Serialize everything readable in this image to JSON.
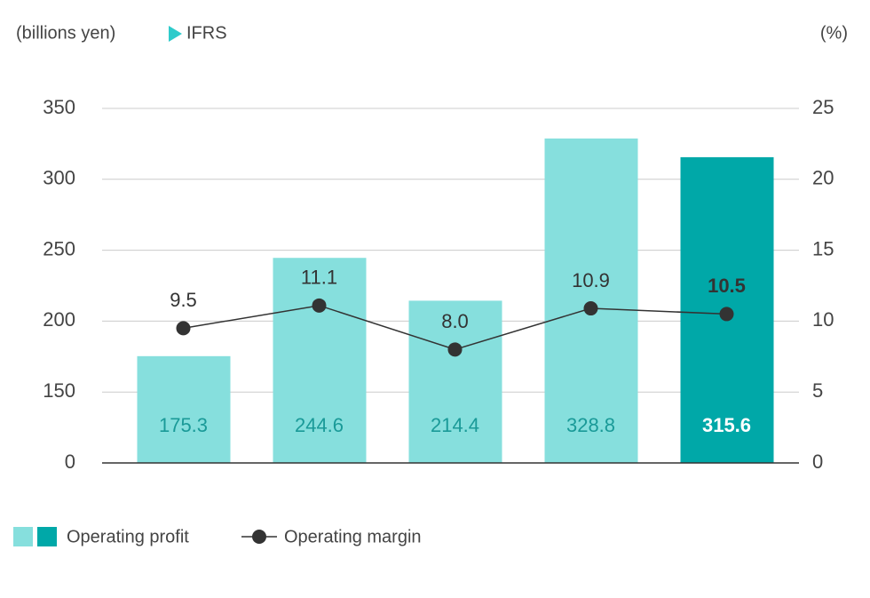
{
  "chart_data": {
    "type": "bar-line",
    "y_unit": "(billions yen)",
    "y2_unit": "(%)",
    "note": "IFRS",
    "categories": [
      null,
      null,
      null,
      null,
      null
    ],
    "series": [
      {
        "name": "Operating profit",
        "type": "bar",
        "axis": "y",
        "colors": [
          "#86dfdd",
          "#86dfdd",
          "#86dfdd",
          "#86dfdd",
          "#00a8a8"
        ],
        "values": [
          175.3,
          244.6,
          214.4,
          328.8,
          315.6
        ]
      },
      {
        "name": "Operating margin",
        "type": "line",
        "axis": "y2",
        "color": "#333333",
        "values": [
          9.5,
          11.1,
          8.0,
          10.9,
          10.5
        ],
        "value_labels": [
          "9.5",
          "11.1",
          "8.0",
          "10.9",
          "10.5"
        ]
      }
    ],
    "ylim": [
      0,
      350
    ],
    "yticks": [
      0,
      150,
      200,
      250,
      300,
      350
    ],
    "y2lim": [
      0,
      25
    ],
    "y2ticks": [
      0,
      5,
      10,
      15,
      20,
      25
    ],
    "grid": true,
    "legend": "bottom-left"
  }
}
